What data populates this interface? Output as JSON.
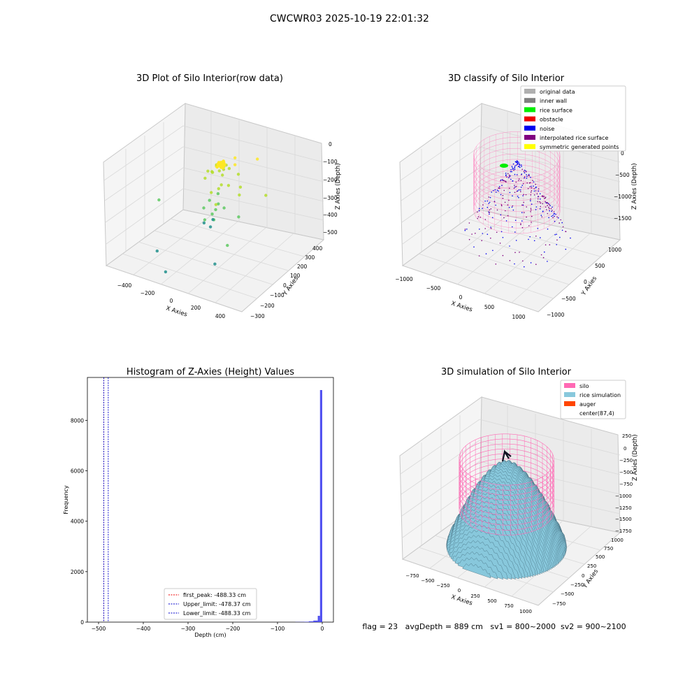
{
  "figure": {
    "suptitle": "CWCWR03 2025-10-19 22:01:32",
    "status_line": "flag = 23   avgDepth = 889 cm   sv1 = 800~2000  sv2 = 900~2100"
  },
  "colors": {
    "panel_face": "#f2f2f2",
    "grid": "#d9d9d9",
    "pink": "#ff69b4",
    "hist_bar": "#4040ee",
    "rice_fill": "#88c8dc",
    "viridis_low": "#21918c",
    "viridis_mid": "#5ec962",
    "viridis_high": "#fde725",
    "noise_blue": "#0000ee",
    "interp_purple": "#800080",
    "rice_green": "#00ee00"
  },
  "chart_data": [
    {
      "type": "scatter3d",
      "title": "3D Plot of Silo Interior(row data)",
      "xlabel": "X Axies",
      "ylabel": "Y Axies",
      "zlabel": "Z Axies (Depth)",
      "x_ticks": [
        "−400",
        "−200",
        "0",
        "200",
        "400"
      ],
      "y_ticks": [
        "−300",
        "−200",
        "−100",
        "0",
        "100",
        "200",
        "300",
        "400"
      ],
      "z_ticks": [
        "0",
        "−100",
        "−200",
        "−300",
        "−400",
        "−500"
      ],
      "xlim": [
        -500,
        500
      ],
      "ylim": [
        -350,
        450
      ],
      "zlim": [
        -520,
        20
      ],
      "grid": true,
      "points": [
        {
          "x": 0,
          "y": 100,
          "z": -95
        },
        {
          "x": 20,
          "y": 110,
          "z": -100
        },
        {
          "x": -20,
          "y": 90,
          "z": -98
        },
        {
          "x": 10,
          "y": 80,
          "z": -110
        },
        {
          "x": -10,
          "y": 120,
          "z": -92
        },
        {
          "x": 30,
          "y": 95,
          "z": -105
        },
        {
          "x": -30,
          "y": 105,
          "z": -100
        },
        {
          "x": 5,
          "y": 130,
          "z": -90
        },
        {
          "x": 40,
          "y": 70,
          "z": -120
        },
        {
          "x": -40,
          "y": 80,
          "z": -130
        },
        {
          "x": 60,
          "y": 110,
          "z": -100
        },
        {
          "x": -60,
          "y": 100,
          "z": -140
        },
        {
          "x": 80,
          "y": 140,
          "z": -90
        },
        {
          "x": 100,
          "y": 50,
          "z": -150
        },
        {
          "x": -80,
          "y": 60,
          "z": -160
        },
        {
          "x": 120,
          "y": 120,
          "z": -120
        },
        {
          "x": 50,
          "y": 180,
          "z": -80
        },
        {
          "x": 150,
          "y": 100,
          "z": -170
        },
        {
          "x": 20,
          "y": 60,
          "z": -190
        },
        {
          "x": -20,
          "y": 40,
          "z": -210
        },
        {
          "x": 0,
          "y": 80,
          "z": -230
        },
        {
          "x": 40,
          "y": 30,
          "z": -250
        },
        {
          "x": -40,
          "y": 50,
          "z": -260
        },
        {
          "x": 60,
          "y": 60,
          "z": -280
        },
        {
          "x": -60,
          "y": 20,
          "z": -290
        },
        {
          "x": 10,
          "y": 10,
          "z": -300
        },
        {
          "x": -10,
          "y": 70,
          "z": -310
        },
        {
          "x": 30,
          "y": 0,
          "z": -320
        },
        {
          "x": -30,
          "y": -10,
          "z": -330
        },
        {
          "x": 0,
          "y": 30,
          "z": -340
        },
        {
          "x": 20,
          "y": -20,
          "z": -350
        },
        {
          "x": -50,
          "y": 10,
          "z": -360
        },
        {
          "x": 200,
          "y": 200,
          "z": -60
        },
        {
          "x": -300,
          "y": -100,
          "z": -250
        },
        {
          "x": 300,
          "y": 150,
          "z": -200
        },
        {
          "x": 250,
          "y": -50,
          "z": -230
        },
        {
          "x": -200,
          "y": -250,
          "z": -420
        },
        {
          "x": 150,
          "y": -150,
          "z": -450
        },
        {
          "x": -100,
          "y": -300,
          "z": -480
        },
        {
          "x": 280,
          "y": -200,
          "z": -300
        },
        {
          "x": 180,
          "y": 50,
          "z": -180
        },
        {
          "x": 90,
          "y": -60,
          "z": -200
        },
        {
          "x": -120,
          "y": 140,
          "z": -170
        },
        {
          "x": 0,
          "y": 160,
          "z": -120
        },
        {
          "x": 70,
          "y": 20,
          "z": -140
        }
      ]
    },
    {
      "type": "scatter3d",
      "title": "3D classify of Silo Interior",
      "xlabel": "X Axies",
      "ylabel": "Y Axies",
      "zlabel": "Z Axies (Depth)",
      "x_ticks": [
        "−1000",
        "−500",
        "0",
        "500",
        "1000"
      ],
      "y_ticks": [
        "−1000",
        "−500",
        "0",
        "500",
        "1000"
      ],
      "z_ticks": [
        "0",
        "−500",
        "−1000",
        "−1500"
      ],
      "xlim": [
        -1100,
        1100
      ],
      "ylim": [
        -1100,
        1100
      ],
      "zlim": [
        -1800,
        100
      ],
      "grid": true,
      "legend": {
        "position": "top-right",
        "entries": [
          {
            "label": "original data",
            "color": "#b0b0b0"
          },
          {
            "label": "inner wall",
            "color": "#808080"
          },
          {
            "label": "rice surface",
            "color": "#00ee00"
          },
          {
            "label": "obstacle",
            "color": "#ee0000"
          },
          {
            "label": "noise",
            "color": "#0000ee"
          },
          {
            "label": "interpolated rice surface",
            "color": "#800080"
          },
          {
            "label": "symmetric generated points",
            "color": "#ffff00"
          }
        ]
      },
      "silo_cylinder": {
        "radius": 600,
        "z_top": 0,
        "z_bottom": -1000
      }
    },
    {
      "type": "histogram",
      "title": "Histogram of Z-Axies (Height) Values",
      "xlabel": "Depth (cm)",
      "ylabel": "Frequency",
      "xlim": [
        -525,
        25
      ],
      "ylim": [
        0,
        9700
      ],
      "x_ticks": [
        -500,
        -400,
        -300,
        -200,
        -100,
        0
      ],
      "x_tick_labels": [
        "−500",
        "−400",
        "−300",
        "−200",
        "−100",
        "0"
      ],
      "y_ticks": [
        0,
        2000,
        4000,
        6000,
        8000
      ],
      "y_tick_labels": [
        "0",
        "2000",
        "4000",
        "6000",
        "8000"
      ],
      "bins": [
        {
          "x0": -60,
          "x1": -50,
          "count": 5
        },
        {
          "x0": -50,
          "x1": -40,
          "count": 8
        },
        {
          "x0": -40,
          "x1": -30,
          "count": 15
        },
        {
          "x0": -30,
          "x1": -20,
          "count": 30
        },
        {
          "x0": -20,
          "x1": -10,
          "count": 60
        },
        {
          "x0": -10,
          "x1": -5,
          "count": 250
        },
        {
          "x0": -5,
          "x1": 0,
          "count": 9200
        }
      ],
      "vlines": [
        {
          "label": "first_peak: -488.33 cm",
          "x": -488.33,
          "color": "#ee0000"
        },
        {
          "label": "Upper_limit: -478.37 cm",
          "x": -478.37,
          "color": "#0000cc"
        },
        {
          "label": "Lower_limit: -488.33 cm",
          "x": -488.33,
          "color": "#0000cc"
        }
      ],
      "legend_position": "lower-center"
    },
    {
      "type": "surface3d",
      "title": "3D simulation of Silo Interior",
      "xlabel": "X Axies",
      "ylabel": "Y Axies",
      "zlabel": "Z Axies (Depth)",
      "x_ticks": [
        "−750",
        "−500",
        "−250",
        "0",
        "250",
        "500",
        "750",
        "1000"
      ],
      "y_ticks": [
        "−750",
        "−500",
        "−250",
        "0",
        "250",
        "500",
        "750",
        "1000"
      ],
      "z_ticks": [
        "250",
        "0",
        "−250",
        "−500",
        "−750",
        "−1000",
        "−1250",
        "−1500",
        "−1750"
      ],
      "xlim": [
        -900,
        1100
      ],
      "ylim": [
        -900,
        1100
      ],
      "zlim": [
        -1800,
        300
      ],
      "grid": true,
      "legend": {
        "position": "top-right",
        "entries": [
          {
            "label": "silo",
            "color": "#ff69b4"
          },
          {
            "label": "rice simulation",
            "color": "#88c8dc"
          },
          {
            "label": "auger",
            "color": "#ff4500"
          },
          {
            "label": "center(87,4)",
            "color": ""
          }
        ]
      },
      "silo_cylinder": {
        "radius": 600,
        "z_top": 0,
        "z_bottom": -1000
      },
      "rice_peak_depth": -50
    }
  ]
}
